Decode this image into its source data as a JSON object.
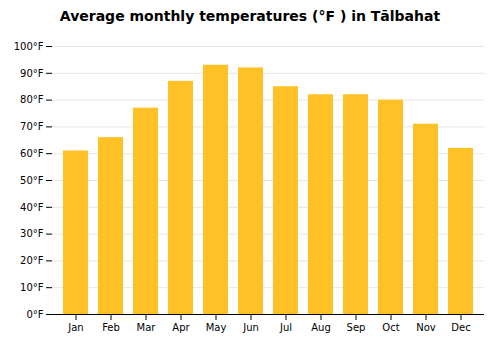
{
  "chart_data": {
    "type": "bar",
    "title": "Average monthly temperatures (°F ) in Tālbahat",
    "categories": [
      "Jan",
      "Feb",
      "Mar",
      "Apr",
      "May",
      "Jun",
      "Jul",
      "Aug",
      "Sep",
      "Oct",
      "Nov",
      "Dec"
    ],
    "values": [
      61,
      66,
      77,
      87,
      93,
      92,
      85,
      82,
      82,
      80,
      71,
      62
    ],
    "color": "#FFC125",
    "ylim": [
      0,
      100
    ],
    "yticks": [
      {
        "value": 0,
        "label": "0°F"
      },
      {
        "value": 10,
        "label": "10°F"
      },
      {
        "value": 20,
        "label": "20°F"
      },
      {
        "value": 30,
        "label": "30°F"
      },
      {
        "value": 40,
        "label": "40°F"
      },
      {
        "value": 50,
        "label": "50°F"
      },
      {
        "value": 60,
        "label": "60°F"
      },
      {
        "value": 70,
        "label": "70°F"
      },
      {
        "value": 80,
        "label": "80°F"
      },
      {
        "value": 90,
        "label": "90°F"
      },
      {
        "value": 100,
        "label": "100°F"
      }
    ],
    "grid": true
  }
}
